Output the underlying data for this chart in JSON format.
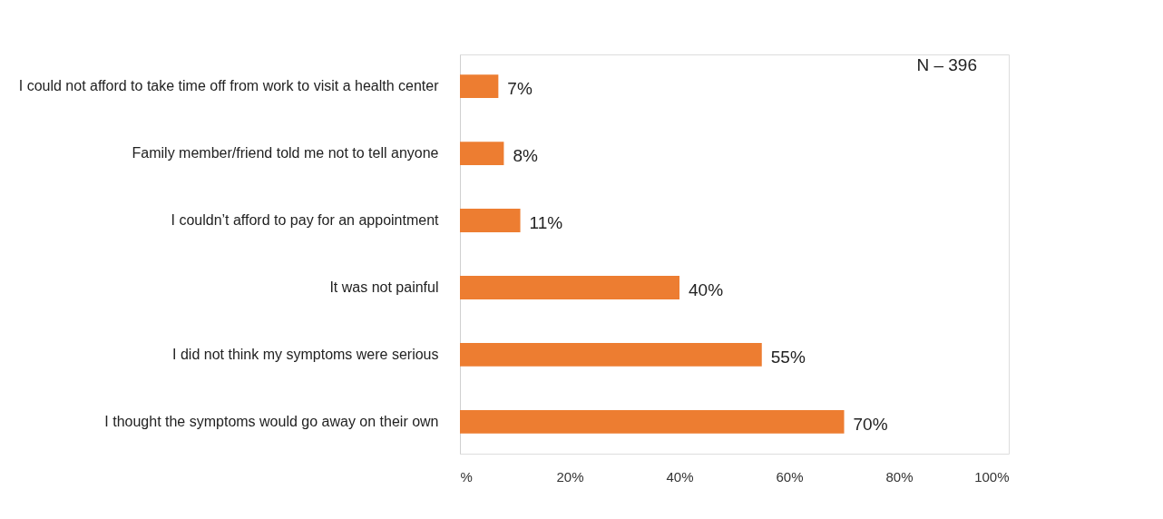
{
  "chart_data": {
    "type": "bar",
    "orientation": "horizontal",
    "categories": [
      "I could not afford to take time off from work to visit a health center",
      "Family member/friend told me not to tell anyone",
      "I couldn’t afford to pay for an appointment",
      "It was not painful",
      "I did not think my symptoms were serious",
      "I thought the symptoms would go away on their own"
    ],
    "values": [
      7,
      8,
      11,
      40,
      55,
      70
    ],
    "value_labels": [
      "7%",
      "8%",
      "11%",
      "40%",
      "55%",
      "70%"
    ],
    "color": "#ed7d31",
    "xlim": [
      0,
      100
    ],
    "xticks": [
      {
        "value": 0,
        "label": "%"
      },
      {
        "value": 20,
        "label": "20%"
      },
      {
        "value": 40,
        "label": "40%"
      },
      {
        "value": 60,
        "label": "60%"
      },
      {
        "value": 80,
        "label": "80%"
      },
      {
        "value": 100,
        "label": "100%"
      }
    ],
    "grid": false,
    "annotations": [
      "N – 396"
    ]
  }
}
